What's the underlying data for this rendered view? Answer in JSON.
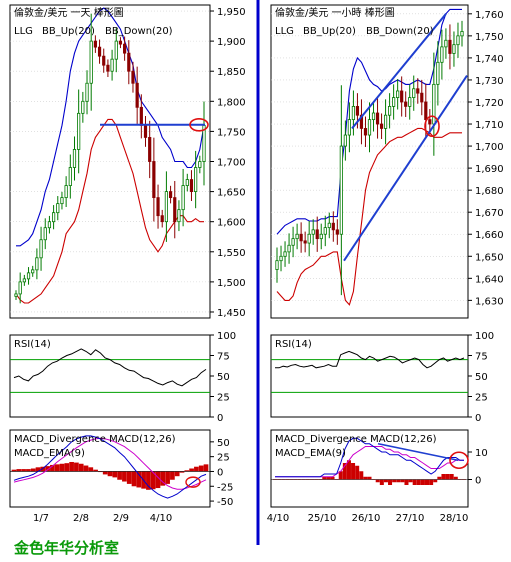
{
  "watermark": "金色年华分析室",
  "colors": {
    "bb_band": "#0000cc",
    "bb_lower": "#cc0000",
    "guide_line": "#1f3fd0",
    "highlight_circle": "#e01010",
    "rsi": "#000000",
    "rsi_guides": "#00a000",
    "macd_line": "#0000cc",
    "macd_ema": "#cc00cc",
    "macd_hist": "#cc0000",
    "divider": "#0000cc"
  },
  "chart_data": [
    {
      "type": "candlestick",
      "title": "倫敦金/美元 一天 棒形圖",
      "legend": [
        "LLG",
        "BB_Up(20)",
        "BB_Down(20)"
      ],
      "ylim": [
        1440,
        1960
      ],
      "yticks": [
        "1,950",
        "1,900",
        "1,850",
        "1,800",
        "1,750",
        "1,700",
        "1,650",
        "1,600",
        "1,550",
        "1,500",
        "1,450"
      ],
      "xticks": [
        "1/7",
        "2/8",
        "2/9",
        "4/10"
      ],
      "grid": true,
      "annotations": {
        "horizontal_line": 1761,
        "circled_price": 1761
      },
      "approx_close": [
        1480,
        1500,
        1505,
        1515,
        1520,
        1540,
        1570,
        1590,
        1600,
        1615,
        1630,
        1640,
        1660,
        1690,
        1720,
        1780,
        1800,
        1830,
        1900,
        1890,
        1875,
        1860,
        1850,
        1870,
        1900,
        1895,
        1880,
        1850,
        1830,
        1790,
        1760,
        1740,
        1700,
        1640,
        1610,
        1600,
        1650,
        1640,
        1600,
        1620,
        1660,
        1670,
        1650,
        1690,
        1700,
        1760
      ],
      "bb_upper_approx": [
        1560,
        1560,
        1565,
        1570,
        1580,
        1600,
        1620,
        1650,
        1670,
        1700,
        1730,
        1760,
        1800,
        1850,
        1880,
        1900,
        1910,
        1920,
        1930,
        1940,
        1950,
        1955,
        1950,
        1940,
        1930,
        1920,
        1900,
        1880,
        1860,
        1820,
        1800,
        1790,
        1780,
        1770,
        1760,
        1740,
        1730,
        1720,
        1700,
        1700,
        1700,
        1690,
        1690,
        1700,
        1720,
        1760
      ],
      "bb_lower_approx": [
        1480,
        1470,
        1465,
        1465,
        1470,
        1475,
        1480,
        1490,
        1500,
        1510,
        1530,
        1550,
        1580,
        1590,
        1600,
        1620,
        1650,
        1680,
        1720,
        1740,
        1750,
        1760,
        1770,
        1770,
        1760,
        1740,
        1720,
        1700,
        1680,
        1650,
        1620,
        1590,
        1570,
        1560,
        1550,
        1560,
        1580,
        1590,
        1600,
        1610,
        1610,
        1600,
        1600,
        1605,
        1600,
        1600
      ]
    },
    {
      "type": "line",
      "title": "RSI(14)",
      "ylim": [
        0,
        100
      ],
      "yticks": [
        "100",
        "75",
        "50",
        "25",
        "0"
      ],
      "guides": [
        70,
        30
      ],
      "approx_values": [
        48,
        50,
        46,
        44,
        50,
        52,
        56,
        62,
        66,
        68,
        72,
        75,
        77,
        80,
        83,
        80,
        76,
        82,
        78,
        72,
        70,
        66,
        64,
        60,
        57,
        56,
        52,
        48,
        47,
        44,
        41,
        39,
        42,
        44,
        40,
        38,
        42,
        46,
        48,
        54,
        58
      ]
    },
    {
      "type": "line+bar",
      "title": "MACD_Divergence  MACD(12,26)",
      "legend": [
        "MACD_Divergence",
        "MACD(12,26)",
        "MACD_EMA(9)"
      ],
      "ylim": [
        -60,
        70
      ],
      "yticks": [
        "50",
        "25",
        "0",
        "-25",
        "-50"
      ],
      "approx_macd": [
        -15,
        -12,
        -10,
        -8,
        -5,
        0,
        5,
        12,
        20,
        28,
        35,
        42,
        50,
        55,
        58,
        60,
        60,
        58,
        55,
        50,
        45,
        40,
        32,
        25,
        15,
        5,
        -5,
        -15,
        -25,
        -32,
        -38,
        -42,
        -45,
        -42,
        -38,
        -32,
        -26,
        -20,
        -14,
        -8,
        -5
      ],
      "approx_ema": [
        -18,
        -16,
        -14,
        -12,
        -10,
        -7,
        -3,
        3,
        9,
        16,
        22,
        28,
        34,
        40,
        45,
        50,
        53,
        55,
        56,
        55,
        53,
        50,
        46,
        42,
        36,
        30,
        22,
        14,
        6,
        -2,
        -10,
        -18,
        -24,
        -28,
        -30,
        -30,
        -28,
        -25,
        -22,
        -18,
        -14
      ],
      "approx_hist": [
        3,
        4,
        4,
        4,
        5,
        7,
        8,
        9,
        11,
        12,
        13,
        14,
        16,
        15,
        13,
        10,
        7,
        3,
        -1,
        -5,
        -8,
        -10,
        -14,
        -17,
        -21,
        -25,
        -27,
        -29,
        -31,
        -30,
        -28,
        -24,
        -21,
        -14,
        -8,
        -2,
        2,
        5,
        8,
        10,
        12
      ]
    },
    {
      "type": "candlestick",
      "title": "倫敦金/美元 一小時 棒形圖",
      "legend": [
        "LLG",
        "BB_Up(20)",
        "BB_Down(20)"
      ],
      "ylim": [
        1622,
        1764
      ],
      "yticks": [
        "1,760",
        "1,750",
        "1,740",
        "1,730",
        "1,720",
        "1,710",
        "1,700",
        "1,690",
        "1,680",
        "1,670",
        "1,660",
        "1,650",
        "1,640",
        "1,630"
      ],
      "xticks": [
        "4/10",
        "25/10",
        "26/10",
        "27/10",
        "28/10"
      ],
      "grid": true,
      "approx_close": [
        1648,
        1650,
        1652,
        1655,
        1658,
        1660,
        1657,
        1656,
        1660,
        1662,
        1658,
        1660,
        1663,
        1665,
        1662,
        1660,
        1700,
        1705,
        1712,
        1718,
        1714,
        1708,
        1705,
        1712,
        1715,
        1710,
        1708,
        1714,
        1718,
        1722,
        1725,
        1720,
        1718,
        1722,
        1726,
        1724,
        1720,
        1712,
        1710,
        1728,
        1738,
        1745,
        1748,
        1742,
        1746,
        1750,
        1752
      ],
      "bb_upper_approx": [
        1660,
        1662,
        1664,
        1665,
        1666,
        1667,
        1667,
        1667,
        1666,
        1666,
        1666,
        1667,
        1667,
        1668,
        1668,
        1668,
        1690,
        1705,
        1725,
        1735,
        1740,
        1738,
        1734,
        1730,
        1728,
        1727,
        1725,
        1726,
        1728,
        1729,
        1730,
        1729,
        1728,
        1728,
        1729,
        1730,
        1729,
        1728,
        1728,
        1735,
        1745,
        1755,
        1760,
        1762,
        1762,
        1762,
        1762
      ],
      "bb_lower_approx": [
        1634,
        1632,
        1630,
        1630,
        1632,
        1638,
        1642,
        1644,
        1645,
        1646,
        1648,
        1650,
        1650,
        1651,
        1652,
        1652,
        1640,
        1630,
        1628,
        1634,
        1650,
        1665,
        1680,
        1688,
        1692,
        1696,
        1698,
        1700,
        1702,
        1703,
        1704,
        1704,
        1705,
        1706,
        1707,
        1708,
        1708,
        1707,
        1706,
        1704,
        1704,
        1704,
        1705,
        1706,
        1706,
        1706,
        1706
      ],
      "annotations": {
        "channel_lower_from": 1648,
        "channel_lower_to": 1732,
        "channel_upper_from": 1708,
        "channel_upper_to": 1760,
        "circled_price": 1709
      }
    },
    {
      "type": "line",
      "title": "RSI(14)",
      "ylim": [
        0,
        100
      ],
      "yticks": [
        "100",
        "75",
        "50",
        "25",
        "0"
      ],
      "guides": [
        70,
        30
      ],
      "approx_values": [
        60,
        60,
        62,
        61,
        63,
        64,
        62,
        61,
        62,
        63,
        60,
        61,
        62,
        64,
        62,
        62,
        76,
        78,
        80,
        78,
        76,
        72,
        70,
        74,
        72,
        68,
        70,
        72,
        74,
        73,
        70,
        66,
        68,
        70,
        72,
        70,
        64,
        60,
        62,
        66,
        70,
        72,
        68,
        70,
        72,
        70,
        72
      ]
    },
    {
      "type": "line+bar",
      "title": "MACD_Divergence  MACD(12,26)",
      "legend": [
        "MACD_Divergence",
        "MACD(12,26)",
        "MACD_EMA(9)"
      ],
      "ylim": [
        -10,
        18
      ],
      "yticks": [
        "10",
        "0"
      ],
      "approx_macd": [
        1,
        1,
        1,
        1,
        1,
        1,
        1,
        1,
        1,
        1,
        1,
        1,
        2,
        2,
        2,
        2,
        6,
        11,
        14,
        15,
        15,
        14,
        13,
        13,
        12,
        11,
        10,
        10,
        9,
        9,
        9,
        8,
        7,
        7,
        6,
        5,
        4,
        3,
        2,
        3,
        5,
        7,
        8,
        8,
        8,
        7,
        7
      ],
      "approx_ema": [
        1,
        1,
        1,
        1,
        1,
        1,
        1,
        1,
        1,
        1,
        1,
        1,
        1,
        1,
        1,
        2,
        3,
        5,
        7,
        9,
        10,
        11,
        12,
        12,
        12,
        12,
        12,
        11,
        11,
        10,
        10,
        9,
        9,
        8,
        8,
        7,
        6,
        5,
        4,
        4,
        4,
        5,
        6,
        6,
        7,
        7,
        7
      ],
      "approx_hist": [
        0,
        0,
        0,
        0,
        0,
        0,
        0,
        0,
        0,
        0,
        0,
        0,
        1,
        1,
        1,
        0,
        3,
        6,
        7,
        6,
        5,
        3,
        1,
        1,
        0,
        -1,
        -2,
        -1,
        -2,
        -1,
        -1,
        -1,
        -2,
        -1,
        -2,
        -2,
        -2,
        -2,
        -2,
        -1,
        1,
        2,
        2,
        2,
        1,
        0,
        0
      ],
      "annotations": {
        "trend_line_from": 13,
        "trend_line_to": 7,
        "circled_value": 7
      }
    }
  ]
}
